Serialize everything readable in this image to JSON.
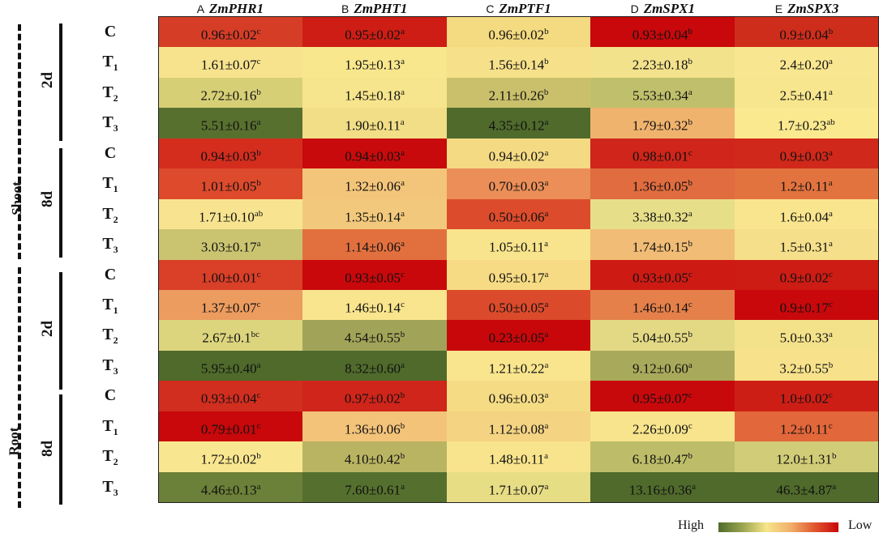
{
  "columns": [
    {
      "letter": "A",
      "gene": "ZmPHR1"
    },
    {
      "letter": "B",
      "gene": "ZmPHT1"
    },
    {
      "letter": "C",
      "gene": "ZmPTF1"
    },
    {
      "letter": "D",
      "gene": "ZmSPX1"
    },
    {
      "letter": "E",
      "gene": "ZmSPX3"
    }
  ],
  "tissues": [
    "Shoot",
    "Root"
  ],
  "times": [
    "2d",
    "8d",
    "2d",
    "8d"
  ],
  "treatments": [
    [
      "C",
      ""
    ],
    [
      "T",
      "1"
    ],
    [
      "T",
      "2"
    ],
    [
      "T",
      "3"
    ]
  ],
  "chart_data": {
    "type": "heatmap",
    "rows": [
      {
        "tissue": "Shoot",
        "time": "2d",
        "treatment": "C",
        "cells": [
          [
            "0.96±0.02",
            "c",
            "#d63d27"
          ],
          [
            "0.95±0.02",
            "a",
            "#cd1d14"
          ],
          [
            "0.96±0.02",
            "b",
            "#f4da80"
          ],
          [
            "0.93±0.04",
            "b",
            "#c8080b"
          ],
          [
            "0.9±0.04",
            "b",
            "#cf2d1c"
          ]
        ]
      },
      {
        "tissue": "Shoot",
        "time": "2d",
        "treatment": "T1",
        "cells": [
          [
            "1.61±0.07",
            "c",
            "#f7e38d"
          ],
          [
            "1.95±0.13",
            "a",
            "#f9e78d"
          ],
          [
            "1.56±0.14",
            "b",
            "#f6e08a"
          ],
          [
            "2.23±0.18",
            "b",
            "#f3e28c"
          ],
          [
            "2.4±0.20",
            "a",
            "#f9e690"
          ]
        ]
      },
      {
        "tissue": "Shoot",
        "time": "2d",
        "treatment": "T2",
        "cells": [
          [
            "2.72±0.16",
            "b",
            "#d7cf76"
          ],
          [
            "1.45±0.18",
            "a",
            "#f6e58c"
          ],
          [
            "2.11±0.26",
            "b",
            "#cac06c"
          ],
          [
            "5.53±0.34",
            "a",
            "#c0c06c"
          ],
          [
            "2.5±0.41",
            "a",
            "#f7e68d"
          ]
        ]
      },
      {
        "tissue": "Shoot",
        "time": "2d",
        "treatment": "T3",
        "cells": [
          [
            "5.51±0.16",
            "a",
            "#58702e"
          ],
          [
            "1.90±0.11",
            "a",
            "#f2de87"
          ],
          [
            "4.35±0.12",
            "a",
            "#4f6a2b"
          ],
          [
            "1.79±0.32",
            "b",
            "#f0b36e"
          ],
          [
            "1.7±0.23",
            "ab",
            "#fbe98f"
          ]
        ]
      },
      {
        "tissue": "Shoot",
        "time": "8d",
        "treatment": "C",
        "cells": [
          [
            "0.94±0.03",
            "b",
            "#d42d1e"
          ],
          [
            "0.94±0.03",
            "a",
            "#c80a0c"
          ],
          [
            "0.94±0.02",
            "a",
            "#f5da84"
          ],
          [
            "0.98±0.01",
            "c",
            "#d0251a"
          ],
          [
            "0.9±0.03",
            "a",
            "#d0281a"
          ]
        ]
      },
      {
        "tissue": "Shoot",
        "time": "8d",
        "treatment": "T1",
        "cells": [
          [
            "1.01±0.05",
            "b",
            "#dd4a2c"
          ],
          [
            "1.32±0.06",
            "a",
            "#f3c57a"
          ],
          [
            "0.70±0.03",
            "a",
            "#eb8e58"
          ],
          [
            "1.36±0.05",
            "b",
            "#e06c3f"
          ],
          [
            "1.2±0.11",
            "a",
            "#e2733f"
          ]
        ]
      },
      {
        "tissue": "Shoot",
        "time": "8d",
        "treatment": "T2",
        "cells": [
          [
            "1.71±0.10",
            "ab",
            "#f8e490"
          ],
          [
            "1.35±0.14",
            "a",
            "#f2c97c"
          ],
          [
            "0.50±0.06",
            "a",
            "#dc4c2c"
          ],
          [
            "3.38±0.32",
            "a",
            "#e7de89"
          ],
          [
            "1.6±0.04",
            "a",
            "#f9e58e"
          ]
        ]
      },
      {
        "tissue": "Shoot",
        "time": "8d",
        "treatment": "T3",
        "cells": [
          [
            "3.03±0.17",
            "a",
            "#cac471"
          ],
          [
            "1.14±0.06",
            "a",
            "#e2703f"
          ],
          [
            "1.05±0.11",
            "a",
            "#f8e48c"
          ],
          [
            "1.74±0.15",
            "b",
            "#f1bc76"
          ],
          [
            "1.5±0.31",
            "a",
            "#f6df8a"
          ]
        ]
      },
      {
        "tissue": "Root",
        "time": "2d",
        "treatment": "C",
        "cells": [
          [
            "1.00±0.01",
            "c",
            "#da3f28"
          ],
          [
            "0.93±0.05",
            "c",
            "#c8080b"
          ],
          [
            "0.95±0.17",
            "a",
            "#f6db84"
          ],
          [
            "0.93±0.05",
            "c",
            "#cd1b14"
          ],
          [
            "0.9±0.02",
            "c",
            "#cc1c14"
          ]
        ]
      },
      {
        "tissue": "Root",
        "time": "2d",
        "treatment": "T1",
        "cells": [
          [
            "1.37±0.07",
            "c",
            "#ec9c5f"
          ],
          [
            "1.46±0.14",
            "c",
            "#f8e58d"
          ],
          [
            "0.50±0.05",
            "a",
            "#db4a2b"
          ],
          [
            "1.46±0.14",
            "c",
            "#e5804a"
          ],
          [
            "0.9±0.17",
            "c",
            "#c8080b"
          ]
        ]
      },
      {
        "tissue": "Root",
        "time": "2d",
        "treatment": "T2",
        "cells": [
          [
            "2.67±0.1",
            "bc",
            "#dcd57e"
          ],
          [
            "4.54±0.55",
            "b",
            "#a1a458"
          ],
          [
            "0.23±0.05",
            "a",
            "#c8070b"
          ],
          [
            "5.04±0.55",
            "b",
            "#e3d985"
          ],
          [
            "5.0±0.33",
            "a",
            "#f4e28b"
          ]
        ]
      },
      {
        "tissue": "Root",
        "time": "2d",
        "treatment": "T3",
        "cells": [
          [
            "5.95±0.40",
            "a",
            "#4f6a2b"
          ],
          [
            "8.32±0.60",
            "a",
            "#4f6a2b"
          ],
          [
            "1.21±0.22",
            "a",
            "#f9e58d"
          ],
          [
            "9.12±0.60",
            "a",
            "#a9a95b"
          ],
          [
            "3.2±0.55",
            "b",
            "#f7e28b"
          ]
        ]
      },
      {
        "tissue": "Root",
        "time": "8d",
        "treatment": "C",
        "cells": [
          [
            "0.93±0.04",
            "c",
            "#d12e1f"
          ],
          [
            "0.97±0.02",
            "b",
            "#d0251a"
          ],
          [
            "0.96±0.03",
            "a",
            "#f5dc84"
          ],
          [
            "0.95±0.07",
            "c",
            "#c8090c"
          ],
          [
            "1.0±0.02",
            "c",
            "#cd1e16"
          ]
        ]
      },
      {
        "tissue": "Root",
        "time": "8d",
        "treatment": "T1",
        "cells": [
          [
            "0.79±0.01",
            "c",
            "#c8080b"
          ],
          [
            "1.36±0.06",
            "b",
            "#f3c37a"
          ],
          [
            "1.12±0.08",
            "a",
            "#f4d383"
          ],
          [
            "2.26±0.09",
            "c",
            "#f7e48c"
          ],
          [
            "1.2±0.11",
            "c",
            "#e2673a"
          ]
        ]
      },
      {
        "tissue": "Root",
        "time": "8d",
        "treatment": "T2",
        "cells": [
          [
            "1.72±0.02",
            "b",
            "#f9e690"
          ],
          [
            "4.10±0.42",
            "b",
            "#b8b462"
          ],
          [
            "1.48±0.11",
            "a",
            "#f8e48c"
          ],
          [
            "6.18±0.47",
            "b",
            "#bdbd69"
          ],
          [
            "12.0±1.31",
            "b",
            "#d1cc77"
          ]
        ]
      },
      {
        "tissue": "Root",
        "time": "8d",
        "treatment": "T3",
        "cells": [
          [
            "4.46±0.13",
            "a",
            "#6b8038"
          ],
          [
            "7.60±0.61",
            "a",
            "#55702e"
          ],
          [
            "1.71±0.07",
            "a",
            "#e7dd85"
          ],
          [
            "13.16±0.36",
            "a",
            "#4f6a2b"
          ],
          [
            "46.3±4.87",
            "a",
            "#4f6a2b"
          ]
        ]
      }
    ]
  },
  "legend": {
    "high": "High",
    "low": "Low"
  }
}
